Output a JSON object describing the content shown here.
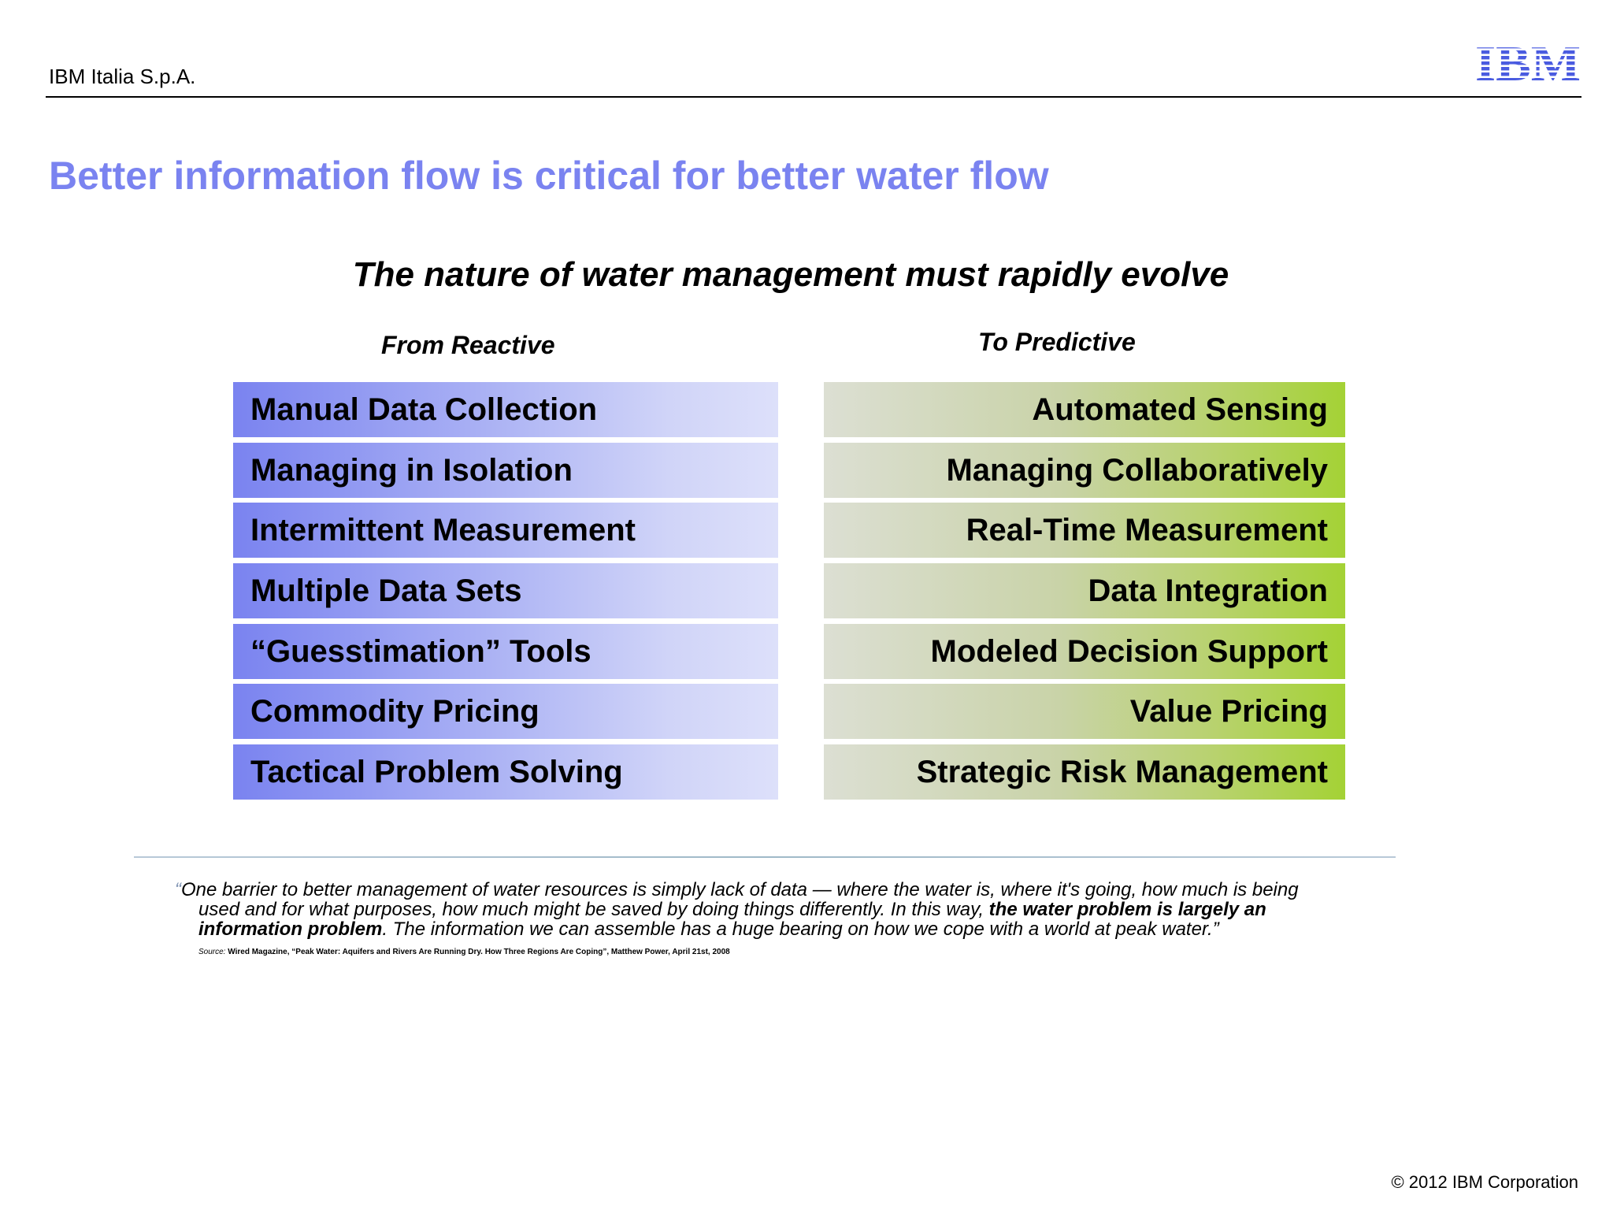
{
  "header": {
    "company": "IBM Italia S.p.A.",
    "logo_text": "IBM",
    "logo_color": "#4a5be0"
  },
  "slide": {
    "title": "Better information flow is critical for better water flow",
    "title_color": "#7a83f0",
    "subtitle": "The nature of water management must rapidly evolve"
  },
  "columns": {
    "left_heading": "From Reactive",
    "right_heading": "To Predictive",
    "left_items": [
      "Manual Data Collection",
      "Managing in Isolation",
      "Intermittent Measurement",
      "Multiple Data Sets",
      "“Guesstimation” Tools",
      "Commodity Pricing",
      "Tactical Problem Solving"
    ],
    "right_items": [
      "Automated Sensing",
      "Managing Collaboratively",
      "Real-Time Measurement",
      "Data Integration",
      "Modeled Decision Support",
      "Value Pricing",
      "Strategic Risk Management"
    ],
    "left_color": "#7a83f0",
    "right_color": "#a4d235"
  },
  "quote": {
    "open_mark": "“",
    "line1": "One barrier to better management of water resources is simply lack of data — where the water is, where it's going, how much is being",
    "line2_start": "used and for what purposes, how much might be saved by doing things differently. In this way, ",
    "line2_bold": "the water problem is largely an",
    "line3_bold": "information problem",
    "line3_end": ". The information we can assemble has a huge bearing on how we cope with a world at peak water.”"
  },
  "source": {
    "label": "Source:",
    "text": "Wired Magazine, “Peak Water: Aquifers and Rivers Are Running Dry. How Three Regions Are Coping”, Matthew Power, April 21st, 2008"
  },
  "footer": {
    "copyright": "© 2012 IBM Corporation"
  }
}
